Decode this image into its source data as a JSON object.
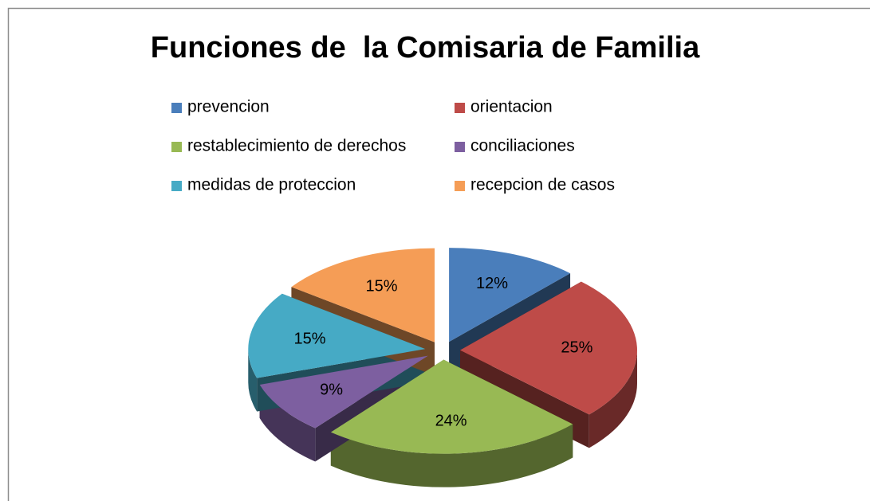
{
  "chart_data": {
    "type": "pie",
    "title": "Funciones de  la Comisaria de Familia",
    "categories": [
      "prevencion",
      "orientacion",
      "restablecimiento de derechos",
      "conciliaciones",
      "medidas de proteccion",
      "recepcion de casos"
    ],
    "values": [
      12,
      25,
      24,
      9,
      15,
      15
    ],
    "value_labels": [
      "12%",
      "25%",
      "24%",
      "9%",
      "15%",
      "15%"
    ],
    "colors": [
      "#4a7ebb",
      "#be4b48",
      "#98b954",
      "#7d5fa0",
      "#46aac5",
      "#f59d56"
    ],
    "legend": "top"
  }
}
